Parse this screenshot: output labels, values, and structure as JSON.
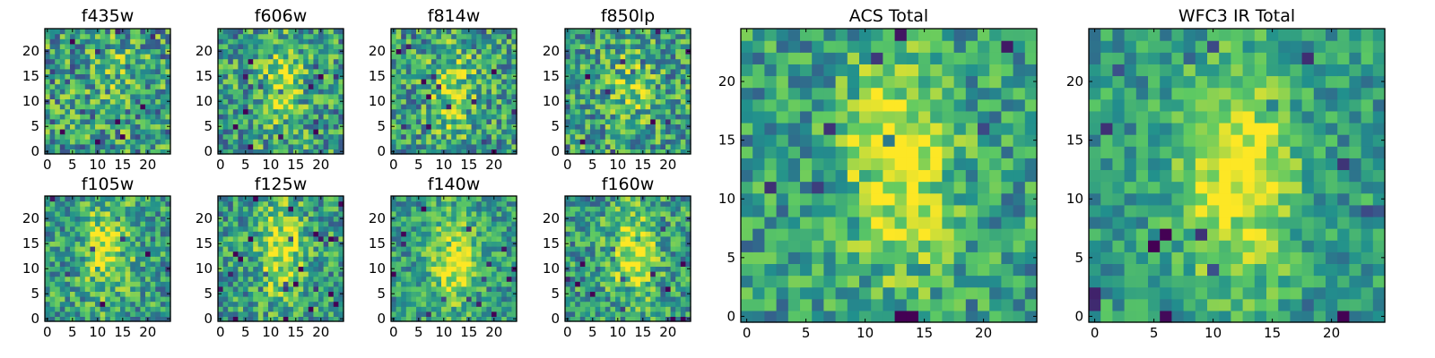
{
  "chart_data": [
    {
      "type": "heatmap",
      "title": "f435w",
      "grid_size": 25,
      "xlim": [
        0,
        24
      ],
      "ylim": [
        0,
        24
      ],
      "xticks": [
        0,
        5,
        10,
        15,
        20
      ],
      "yticks": [
        0,
        5,
        10,
        15,
        20
      ],
      "tick_labels_x": [
        "0",
        "5",
        "10",
        "15",
        "20"
      ],
      "tick_labels_y": [
        "0",
        "5",
        "10",
        "15",
        "20"
      ],
      "source_peak": [
        14,
        16
      ],
      "source_strength": 0.12,
      "noise": 0.35,
      "seed": 11
    },
    {
      "type": "heatmap",
      "title": "f606w",
      "grid_size": 25,
      "xlim": [
        0,
        24
      ],
      "ylim": [
        0,
        24
      ],
      "xticks": [
        0,
        5,
        10,
        15,
        20
      ],
      "yticks": [
        0,
        5,
        10,
        15,
        20
      ],
      "tick_labels_x": [
        "0",
        "5",
        "10",
        "15",
        "20"
      ],
      "tick_labels_y": [
        "0",
        "5",
        "10",
        "15",
        "20"
      ],
      "source_peak": [
        12,
        13
      ],
      "source_strength": 0.3,
      "noise": 0.32,
      "seed": 23
    },
    {
      "type": "heatmap",
      "title": "f814w",
      "grid_size": 25,
      "xlim": [
        0,
        24
      ],
      "ylim": [
        0,
        24
      ],
      "xticks": [
        0,
        5,
        10,
        15,
        20
      ],
      "yticks": [
        0,
        5,
        10,
        15,
        20
      ],
      "tick_labels_x": [
        "0",
        "5",
        "10",
        "15",
        "20"
      ],
      "tick_labels_y": [
        "0",
        "5",
        "10",
        "15",
        "20"
      ],
      "source_peak": [
        12,
        12
      ],
      "source_strength": 0.3,
      "noise": 0.32,
      "seed": 37
    },
    {
      "type": "heatmap",
      "title": "f850lp",
      "grid_size": 25,
      "xlim": [
        0,
        24
      ],
      "ylim": [
        0,
        24
      ],
      "xticks": [
        0,
        5,
        10,
        15,
        20
      ],
      "yticks": [
        0,
        5,
        10,
        15,
        20
      ],
      "tick_labels_x": [
        "0",
        "5",
        "10",
        "15",
        "20"
      ],
      "tick_labels_y": [
        "0",
        "5",
        "10",
        "15",
        "20"
      ],
      "source_peak": [
        13,
        12
      ],
      "source_strength": 0.22,
      "noise": 0.32,
      "seed": 41
    },
    {
      "type": "heatmap",
      "title": "f105w",
      "grid_size": 25,
      "xlim": [
        0,
        24
      ],
      "ylim": [
        0,
        24
      ],
      "xticks": [
        0,
        5,
        10,
        15,
        20
      ],
      "yticks": [
        0,
        5,
        10,
        15,
        20
      ],
      "tick_labels_x": [
        "0",
        "5",
        "10",
        "15",
        "20"
      ],
      "tick_labels_y": [
        "0",
        "5",
        "10",
        "15",
        "20"
      ],
      "source_peak": [
        12,
        14
      ],
      "source_strength": 0.38,
      "noise": 0.28,
      "seed": 53
    },
    {
      "type": "heatmap",
      "title": "f125w",
      "grid_size": 25,
      "xlim": [
        0,
        24
      ],
      "ylim": [
        0,
        24
      ],
      "xticks": [
        0,
        5,
        10,
        15,
        20
      ],
      "yticks": [
        0,
        5,
        10,
        15,
        20
      ],
      "tick_labels_x": [
        "0",
        "5",
        "10",
        "15",
        "20"
      ],
      "tick_labels_y": [
        "0",
        "5",
        "10",
        "15",
        "20"
      ],
      "source_peak": [
        12,
        14
      ],
      "source_strength": 0.4,
      "noise": 0.28,
      "seed": 67
    },
    {
      "type": "heatmap",
      "title": "f140w",
      "grid_size": 25,
      "xlim": [
        0,
        24
      ],
      "ylim": [
        0,
        24
      ],
      "xticks": [
        0,
        5,
        10,
        15,
        20
      ],
      "yticks": [
        0,
        5,
        10,
        15,
        20
      ],
      "tick_labels_x": [
        "0",
        "5",
        "10",
        "15",
        "20"
      ],
      "tick_labels_y": [
        "0",
        "5",
        "10",
        "15",
        "20"
      ],
      "source_peak": [
        12,
        12
      ],
      "source_strength": 0.42,
      "noise": 0.24,
      "seed": 71
    },
    {
      "type": "heatmap",
      "title": "f160w",
      "grid_size": 25,
      "xlim": [
        0,
        24
      ],
      "ylim": [
        0,
        24
      ],
      "xticks": [
        0,
        5,
        10,
        15,
        20
      ],
      "yticks": [
        0,
        5,
        10,
        15,
        20
      ],
      "tick_labels_x": [
        "0",
        "5",
        "10",
        "15",
        "20"
      ],
      "tick_labels_y": [
        "0",
        "5",
        "10",
        "15",
        "20"
      ],
      "source_peak": [
        13,
        13
      ],
      "source_strength": 0.38,
      "noise": 0.28,
      "seed": 83
    },
    {
      "type": "heatmap",
      "title": "ACS Total",
      "grid_size": 25,
      "xlim": [
        0,
        24
      ],
      "ylim": [
        0,
        24
      ],
      "xticks": [
        0,
        5,
        10,
        15,
        20
      ],
      "yticks": [
        0,
        5,
        10,
        15,
        20
      ],
      "tick_labels_x": [
        "0",
        "5",
        "10",
        "15",
        "20"
      ],
      "tick_labels_y": [
        "0",
        "5",
        "10",
        "15",
        "20"
      ],
      "source_peak": [
        13,
        13
      ],
      "source_strength": 0.45,
      "noise": 0.25,
      "seed": 97
    },
    {
      "type": "heatmap",
      "title": "WFC3 IR Total",
      "grid_size": 25,
      "xlim": [
        0,
        24
      ],
      "ylim": [
        0,
        24
      ],
      "xticks": [
        0,
        5,
        10,
        15,
        20
      ],
      "yticks": [
        0,
        5,
        10,
        15,
        20
      ],
      "tick_labels_x": [
        "0",
        "5",
        "10",
        "15",
        "20"
      ],
      "tick_labels_y": [
        "0",
        "5",
        "10",
        "15",
        "20"
      ],
      "source_peak": [
        12,
        12
      ],
      "source_strength": 0.5,
      "noise": 0.2,
      "seed": 101
    }
  ],
  "colormap": [
    "#440154",
    "#3b528b",
    "#21908d",
    "#5dc963",
    "#fde725"
  ]
}
